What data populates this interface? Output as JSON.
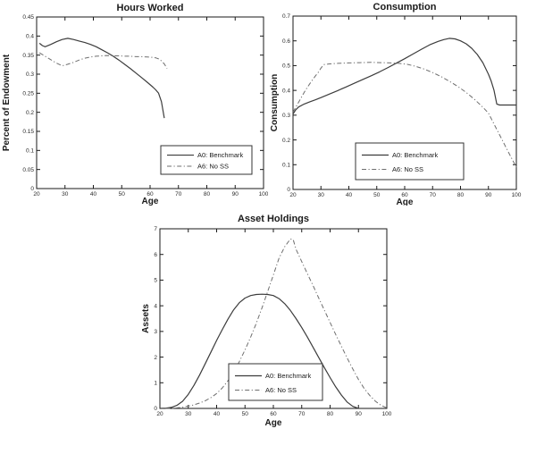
{
  "figure": {
    "background": "#ffffff",
    "colors": {
      "axis": "#1a1a1a",
      "text": "#1a1a1a",
      "tick_text": "#2a2a2a",
      "benchmark_line": "#3c3c3c",
      "noss_line": "#6e6e6e",
      "legend_border": "#333333",
      "legend_fill": "#ffffff"
    }
  },
  "legend": {
    "benchmark_label": "A0: Benchmark",
    "noss_label": "A6: No SS"
  },
  "chart_data": [
    {
      "type": "line",
      "title": "Hours Worked",
      "xlabel": "Age",
      "ylabel": "Percent of Endowment",
      "xlim": [
        20,
        100
      ],
      "ylim": [
        0,
        0.45
      ],
      "grid": false,
      "legend_position": "lower-right",
      "xticks": [
        20,
        30,
        40,
        50,
        60,
        70,
        80,
        90,
        100
      ],
      "xtick_labels": [
        "20",
        "30",
        "40",
        "50",
        "60",
        "70",
        "80",
        "90",
        "100"
      ],
      "yticks": [
        0,
        0.05,
        0.1,
        0.15,
        0.2,
        0.25,
        0.3,
        0.35,
        0.4,
        0.45
      ],
      "ytick_labels": [
        "0",
        "0.05",
        "0.1",
        "0.15",
        "0.2",
        "0.25",
        "0.3",
        "0.35",
        "0.4",
        "0.45"
      ],
      "legend_entries": [
        "A0: Benchmark",
        "A6: No SS"
      ],
      "series": [
        {
          "name": "A0: Benchmark",
          "style": "solid",
          "x": [
            21,
            22,
            23,
            25,
            27,
            29,
            31,
            33,
            35,
            37,
            39,
            41,
            43,
            45,
            47,
            49,
            51,
            53,
            55,
            57,
            59,
            61,
            62,
            63,
            64,
            65
          ],
          "y": [
            0.381,
            0.375,
            0.372,
            0.378,
            0.385,
            0.391,
            0.394,
            0.391,
            0.387,
            0.383,
            0.378,
            0.372,
            0.364,
            0.356,
            0.347,
            0.337,
            0.326,
            0.315,
            0.303,
            0.291,
            0.279,
            0.266,
            0.259,
            0.25,
            0.228,
            0.185
          ]
        },
        {
          "name": "A6: No SS",
          "style": "dashdot",
          "x": [
            21,
            23,
            25,
            27,
            29,
            31,
            33,
            35,
            37,
            39,
            41,
            43,
            45,
            47,
            49,
            51,
            53,
            55,
            57,
            59,
            61,
            62,
            63,
            64,
            65,
            66
          ],
          "y": [
            0.356,
            0.347,
            0.338,
            0.329,
            0.322,
            0.326,
            0.331,
            0.337,
            0.342,
            0.345,
            0.347,
            0.348,
            0.349,
            0.348,
            0.348,
            0.347,
            0.347,
            0.346,
            0.346,
            0.345,
            0.344,
            0.343,
            0.34,
            0.335,
            0.327,
            0.315
          ]
        }
      ]
    },
    {
      "type": "line",
      "title": "Consumption",
      "xlabel": "Age",
      "ylabel": "Consumption",
      "xlim": [
        20,
        100
      ],
      "ylim": [
        0,
        0.7
      ],
      "grid": false,
      "legend_position": "lower-center",
      "xticks": [
        20,
        30,
        40,
        50,
        60,
        70,
        80,
        90,
        100
      ],
      "xtick_labels": [
        "20",
        "30",
        "40",
        "50",
        "60",
        "70",
        "80",
        "90",
        "100"
      ],
      "yticks": [
        0,
        0.1,
        0.2,
        0.3,
        0.4,
        0.5,
        0.6,
        0.7
      ],
      "ytick_labels": [
        "0",
        "0.1",
        "0.2",
        "0.3",
        "0.4",
        "0.5",
        "0.6",
        "0.7"
      ],
      "legend_entries": [
        "A0: Benchmark",
        "A6: No SS"
      ],
      "series": [
        {
          "name": "A0: Benchmark",
          "style": "solid",
          "x": [
            20,
            21,
            22,
            24,
            26,
            28,
            30,
            33,
            36,
            39,
            42,
            45,
            48,
            51,
            54,
            57,
            60,
            63,
            66,
            69,
            72,
            74,
            76,
            78,
            80,
            82,
            84,
            86,
            88,
            90,
            91,
            92,
            93,
            94,
            96,
            100
          ],
          "y": [
            0.305,
            0.322,
            0.333,
            0.345,
            0.354,
            0.362,
            0.371,
            0.385,
            0.399,
            0.414,
            0.429,
            0.444,
            0.459,
            0.475,
            0.492,
            0.51,
            0.528,
            0.547,
            0.566,
            0.584,
            0.598,
            0.605,
            0.61,
            0.608,
            0.6,
            0.588,
            0.57,
            0.545,
            0.512,
            0.465,
            0.437,
            0.4,
            0.345,
            0.341,
            0.341,
            0.341
          ]
        },
        {
          "name": "A6: No SS",
          "style": "dashdot",
          "x": [
            20,
            21,
            22,
            23,
            24,
            25,
            26,
            27,
            28,
            29,
            30,
            31,
            33,
            36,
            40,
            44,
            48,
            52,
            55,
            58,
            61,
            64,
            67,
            70,
            73,
            76,
            79,
            82,
            85,
            88,
            90,
            92,
            94,
            96,
            98,
            100
          ],
          "y": [
            0.312,
            0.332,
            0.352,
            0.372,
            0.392,
            0.41,
            0.427,
            0.443,
            0.458,
            0.472,
            0.49,
            0.504,
            0.507,
            0.509,
            0.511,
            0.512,
            0.513,
            0.512,
            0.511,
            0.509,
            0.505,
            0.497,
            0.486,
            0.472,
            0.456,
            0.437,
            0.416,
            0.392,
            0.364,
            0.332,
            0.308,
            0.264,
            0.22,
            0.176,
            0.132,
            0.09
          ]
        }
      ]
    },
    {
      "type": "line",
      "title": "Asset Holdings",
      "xlabel": "Age",
      "ylabel": "Assets",
      "xlim": [
        20,
        100
      ],
      "ylim": [
        0,
        7
      ],
      "grid": false,
      "legend_position": "lower-center",
      "xticks": [
        20,
        30,
        40,
        50,
        60,
        70,
        80,
        90,
        100
      ],
      "xtick_labels": [
        "20",
        "30",
        "40",
        "50",
        "60",
        "70",
        "80",
        "90",
        "100"
      ],
      "yticks": [
        0,
        1,
        2,
        3,
        4,
        5,
        6,
        7
      ],
      "ytick_labels": [
        "0",
        "1",
        "2",
        "3",
        "4",
        "5",
        "6",
        "7"
      ],
      "legend_entries": [
        "A0: Benchmark",
        "A6: No SS"
      ],
      "series": [
        {
          "name": "A0: Benchmark",
          "style": "solid",
          "x": [
            20,
            22,
            24,
            26,
            28,
            30,
            32,
            34,
            36,
            38,
            40,
            42,
            44,
            46,
            48,
            50,
            52,
            54,
            56,
            58,
            60,
            62,
            64,
            66,
            68,
            70,
            72,
            74,
            76,
            78,
            80,
            82,
            84,
            86,
            88,
            90
          ],
          "y": [
            0,
            0.01,
            0.04,
            0.12,
            0.28,
            0.55,
            0.9,
            1.3,
            1.75,
            2.2,
            2.65,
            3.08,
            3.48,
            3.84,
            4.12,
            4.3,
            4.4,
            4.44,
            4.45,
            4.44,
            4.4,
            4.28,
            4.08,
            3.82,
            3.5,
            3.15,
            2.78,
            2.38,
            1.98,
            1.58,
            1.2,
            0.84,
            0.52,
            0.25,
            0.08,
            0
          ]
        },
        {
          "name": "A6: No SS",
          "style": "dashdot",
          "x": [
            22,
            24,
            26,
            28,
            30,
            32,
            34,
            36,
            38,
            40,
            42,
            44,
            46,
            48,
            50,
            52,
            54,
            56,
            58,
            60,
            62,
            64,
            66,
            67,
            68,
            70,
            72,
            74,
            76,
            78,
            80,
            82,
            84,
            86,
            88,
            90,
            92,
            94,
            96,
            98,
            100
          ],
          "y": [
            0,
            0,
            0.02,
            0.05,
            0.09,
            0.14,
            0.21,
            0.3,
            0.42,
            0.58,
            0.8,
            1.08,
            1.42,
            1.82,
            2.28,
            2.78,
            3.32,
            3.92,
            4.55,
            5.2,
            5.85,
            6.3,
            6.6,
            6.58,
            6.2,
            5.72,
            5.25,
            4.78,
            4.3,
            3.82,
            3.35,
            2.88,
            2.42,
            1.97,
            1.54,
            1.13,
            0.78,
            0.5,
            0.28,
            0.12,
            0.02
          ]
        }
      ]
    }
  ]
}
